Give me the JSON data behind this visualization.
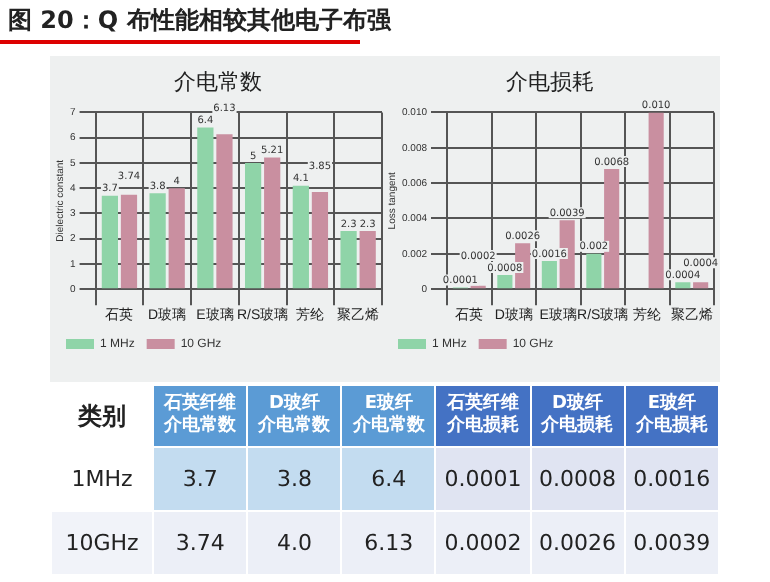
{
  "chart_data": [
    {
      "type": "other",
      "title": "图 20：Q 布性能相较其他电子布强"
    },
    {
      "type": "bar",
      "title": "介电常数",
      "ylabel": "Dielectric constant",
      "categories": [
        "石英",
        "D玻璃",
        "E玻璃",
        "R/S玻璃",
        "芳纶",
        "聚乙烯"
      ],
      "series": [
        {
          "name": "1 MHz",
          "color": "#8fd4a8",
          "values": [
            3.7,
            3.8,
            6.4,
            5,
            4.1,
            2.3
          ]
        },
        {
          "name": "10 GHz",
          "color": "#c98fa0",
          "values": [
            3.74,
            4,
            6.13,
            5.21,
            3.85,
            2.3
          ]
        }
      ],
      "ylim": [
        0,
        7
      ],
      "yticks": [
        0,
        1,
        2,
        3,
        4,
        5,
        6,
        7
      ],
      "grid": true,
      "legend": "bottom left",
      "data_labels": true
    },
    {
      "type": "bar",
      "title": "介电损耗",
      "ylabel": "Loss tangent",
      "categories": [
        "石英",
        "D玻璃",
        "E玻璃",
        "R/S玻璃",
        "芳纶",
        "聚乙烯"
      ],
      "series": [
        {
          "name": "1 MHz",
          "color": "#8fd4a8",
          "values": [
            0.0001,
            0.0008,
            0.0016,
            0.002,
            null,
            0.0004
          ],
          "value_labels": [
            "0.0001",
            "0.0008",
            "0.0016",
            "0.002",
            null,
            "0.0004"
          ]
        },
        {
          "name": "10 GHz",
          "color": "#c98fa0",
          "values": [
            0.0002,
            0.0026,
            0.0039,
            0.0068,
            0.01,
            0.0004
          ],
          "value_labels": [
            "0.0002",
            "0.0026",
            "0.0039",
            "0.0068",
            "0.010",
            "0.0004"
          ]
        }
      ],
      "ylim": [
        0,
        0.01
      ],
      "yticks": [
        0,
        {
          "value": 0.002,
          "label": "0.002"
        },
        {
          "value": 0.004,
          "label": "0.004"
        },
        {
          "value": 0.006,
          "label": "0.006"
        },
        {
          "value": 0.008,
          "label": "0.008"
        },
        {
          "value": 0.01,
          "label": "0.010"
        }
      ],
      "grid": true,
      "legend": "bottom left"
    },
    {
      "type": "other",
      "ylabel": "类别",
      "categories": [
        "石英纤维介电常数",
        "D玻纤介电常数",
        "E玻纤介电常数",
        "石英纤维介电损耗",
        "D玻纤介电损耗",
        "E玻纤介电损耗"
      ],
      "y_categories": [
        "1MHz",
        "10GHz"
      ],
      "cell_labels": [
        [
          "3.7",
          "3.8",
          "6.4",
          "0.0001",
          "0.0008",
          "0.0016"
        ],
        [
          "3.74",
          "4.0",
          "6.13",
          "0.0002",
          "0.0026",
          "0.0039"
        ]
      ]
    }
  ]
}
